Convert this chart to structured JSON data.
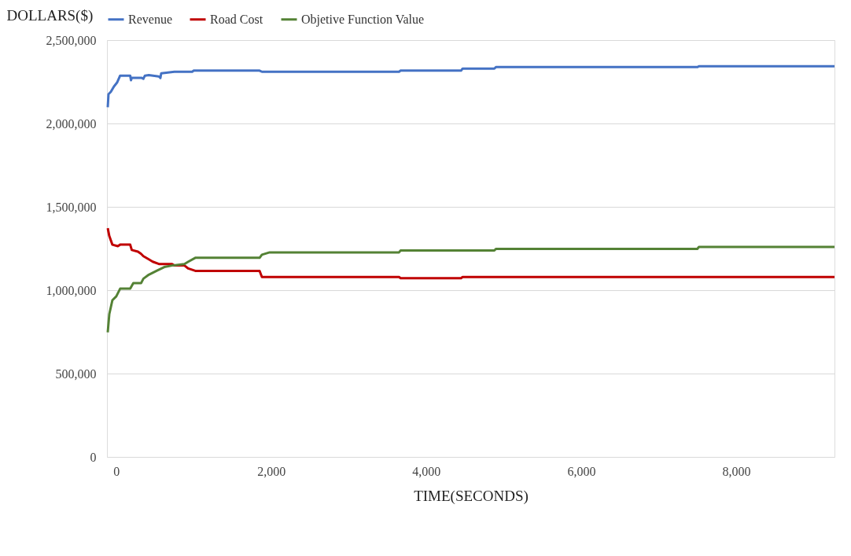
{
  "chart_data": {
    "type": "line",
    "xlabel": "TIME(SECONDS)",
    "ylabel": "DOLLARS($)",
    "xlim": [
      -120,
      9270
    ],
    "xticks": [
      0,
      {
        "value": 2000,
        "label": "2,000"
      },
      {
        "value": 4000,
        "label": "4,000"
      },
      {
        "value": 6000,
        "label": "6,000"
      },
      {
        "value": 8000,
        "label": "8,000"
      }
    ],
    "ylim": [
      0,
      2500000
    ],
    "yticks": [
      0,
      {
        "value": 500000,
        "label": "500,000"
      },
      {
        "value": 1000000,
        "label": "1,000,000"
      },
      {
        "value": 1500000,
        "label": "1,500,000"
      },
      {
        "value": 2000000,
        "label": "2,000,000"
      },
      {
        "value": 2500000,
        "label": "2,500,000"
      }
    ],
    "grid": "y",
    "legend": "top",
    "line_style": "solid",
    "series": [
      {
        "name": "Revenue",
        "color": "#4472c4",
        "x": [
          -110,
          -100,
          -70,
          -30,
          10,
          50,
          180,
          190,
          200,
          330,
          350,
          370,
          420,
          550,
          570,
          580,
          750,
          980,
          1000,
          1850,
          1880,
          3650,
          3670,
          4450,
          4470,
          4880,
          4900,
          7500,
          7520,
          9270
        ],
        "values": [
          2097000,
          2176000,
          2190000,
          2222000,
          2245000,
          2287000,
          2287000,
          2259000,
          2273000,
          2273000,
          2268000,
          2287000,
          2290000,
          2282000,
          2273000,
          2301000,
          2310000,
          2310000,
          2317000,
          2317000,
          2310000,
          2310000,
          2317000,
          2317000,
          2329000,
          2329000,
          2338000,
          2338000,
          2343000,
          2343000
        ]
      },
      {
        "name": "Road Cost",
        "color": "#c00000",
        "x": [
          -110,
          -90,
          -50,
          20,
          50,
          180,
          200,
          280,
          320,
          350,
          420,
          470,
          550,
          720,
          750,
          880,
          930,
          1020,
          1850,
          1880,
          3650,
          3670,
          4450,
          4470,
          9270
        ],
        "values": [
          1372000,
          1325000,
          1273000,
          1264000,
          1273000,
          1273000,
          1241000,
          1231000,
          1218000,
          1204000,
          1185000,
          1171000,
          1157000,
          1157000,
          1148000,
          1148000,
          1130000,
          1116000,
          1116000,
          1079000,
          1079000,
          1072000,
          1072000,
          1079000,
          1079000
        ]
      },
      {
        "name": "Objetive Function Value",
        "color": "#548235",
        "x": [
          -110,
          -90,
          -50,
          0,
          50,
          180,
          220,
          320,
          350,
          420,
          520,
          620,
          720,
          880,
          930,
          1020,
          1850,
          1880,
          1980,
          3650,
          3670,
          4880,
          4900,
          7500,
          7520,
          9270
        ],
        "values": [
          747000,
          856000,
          940000,
          963000,
          1009000,
          1009000,
          1042000,
          1042000,
          1069000,
          1093000,
          1116000,
          1139000,
          1148000,
          1157000,
          1171000,
          1194000,
          1194000,
          1213000,
          1227000,
          1227000,
          1238000,
          1238000,
          1248000,
          1248000,
          1259000,
          1259000
        ]
      }
    ]
  }
}
